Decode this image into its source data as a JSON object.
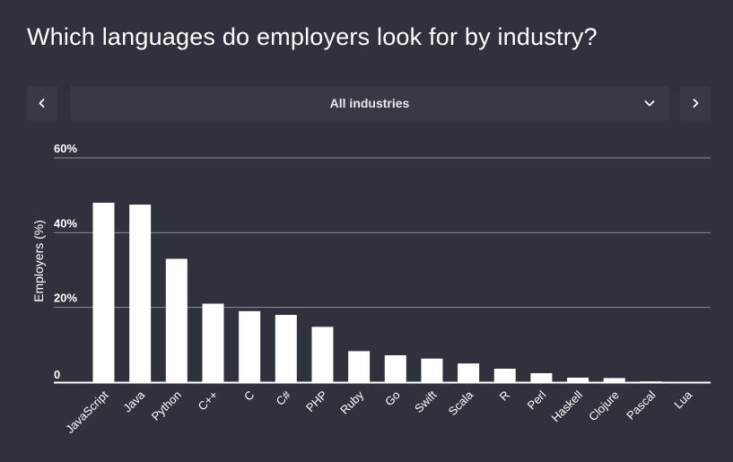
{
  "header": {
    "title": "Which languages do employers look for by industry?"
  },
  "nav": {
    "prev_icon": "chevron-left-icon",
    "next_icon": "chevron-right-icon"
  },
  "selector": {
    "value": "All industries",
    "icon": "chevron-down-icon"
  },
  "colors": {
    "background": "#2f323d",
    "control": "#373a45",
    "bar": "#ffffff",
    "grid": "#8a8d96",
    "text": "#ffffff"
  },
  "chart_data": {
    "type": "bar",
    "title": "",
    "xlabel": "",
    "ylabel": "Employers (%)",
    "ylim": [
      0,
      60
    ],
    "yticks": [
      0,
      20,
      40,
      60
    ],
    "ytick_labels": [
      "0",
      "20%",
      "40%",
      "60%"
    ],
    "grid": true,
    "categories": [
      "JavaScript",
      "Java",
      "Python",
      "C++",
      "C",
      "C#",
      "PHP",
      "Ruby",
      "Go",
      "Swift",
      "Scala",
      "R",
      "Perl",
      "Haskell",
      "Clojure",
      "Pascal",
      "Lua"
    ],
    "values": [
      48,
      47.5,
      33,
      21,
      19,
      18,
      14.8,
      8.3,
      7.2,
      6.3,
      5,
      3.6,
      2.4,
      1.2,
      1.1,
      0.2,
      0.1
    ]
  }
}
